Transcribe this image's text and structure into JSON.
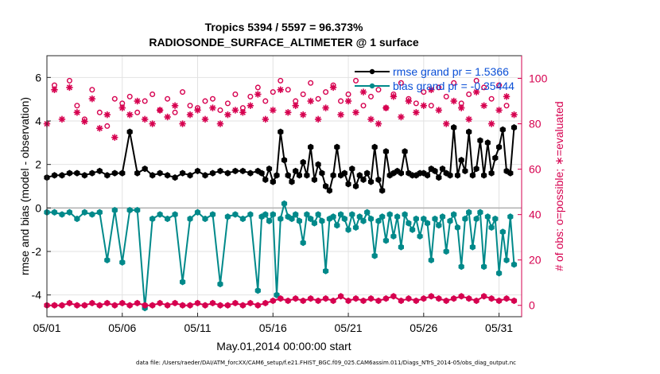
{
  "chart_data": {
    "type": "line",
    "title": "Tropics 5394 / 5597 = 96.373%",
    "subtitle": "RADIOSONDE_SURFACE_ALTIMETER @ 1 surface",
    "xlabel": "May.01,2014 00:00:00 start",
    "ylabel": "rmse and bias (model - observation)",
    "ylabel_right": "# of obs: o=possible; ∗=evaluated",
    "footnote": "data file: /Users/raeder/DAI/ATM_forcXX/CAM6_setup/f.e21.FHIST_BGC.f09_025.CAM6assim.011/Diags_NTrS_2014-05/obs_diag_output.nc",
    "x_range": [
      0,
      31.5
    ],
    "xlim": [
      0,
      31.5
    ],
    "ylim": [
      -5,
      7
    ],
    "ylim_right": [
      -5,
      110
    ],
    "x_tick_positions": [
      0,
      5,
      10,
      15,
      20,
      25,
      30
    ],
    "x_tick_labels": [
      "05/01",
      "05/06",
      "05/11",
      "05/16",
      "05/21",
      "05/26",
      "05/31"
    ],
    "y_ticks": [
      "-4",
      "-2",
      "0",
      "2",
      "4",
      "6"
    ],
    "y_ticks_right": [
      "0",
      "20",
      "40",
      "60",
      "80",
      "100"
    ],
    "zero_line": 0,
    "legend": [
      {
        "name": "rmse grand pr = 1.5366",
        "color": "#000000"
      },
      {
        "name": "bias grand pr = -0.35444",
        "color": "#00898a"
      }
    ],
    "series": [
      {
        "name": "rmse",
        "axis": "left",
        "color": "#000000",
        "style": "line-marker",
        "x": [
          0.0,
          0.5,
          1.0,
          1.5,
          2.0,
          2.5,
          3.0,
          3.5,
          4.0,
          4.5,
          5.0,
          5.5,
          6.0,
          6.5,
          7.0,
          7.5,
          8.0,
          8.5,
          9.0,
          9.5,
          10.0,
          10.5,
          11.0,
          11.5,
          12.0,
          12.5,
          13.0,
          13.5,
          14.0,
          14.25,
          14.5,
          14.75,
          15.0,
          15.25,
          15.5,
          15.75,
          16.0,
          16.25,
          16.5,
          16.75,
          17.0,
          17.25,
          17.5,
          17.75,
          18.0,
          18.25,
          18.5,
          18.75,
          19.0,
          19.25,
          19.5,
          19.75,
          20.0,
          20.25,
          20.5,
          20.75,
          21.0,
          21.25,
          21.5,
          21.75,
          22.0,
          22.25,
          22.5,
          22.75,
          23.0,
          23.25,
          23.5,
          23.75,
          24.0,
          24.25,
          24.5,
          24.75,
          25.0,
          25.25,
          25.5,
          25.75,
          26.0,
          26.25,
          26.5,
          26.75,
          27.0,
          27.25,
          27.5,
          27.75,
          28.0,
          28.25,
          28.5,
          28.75,
          29.0,
          29.25,
          29.5,
          29.75,
          30.0,
          30.25,
          30.5,
          30.75,
          31.0
        ],
        "values": [
          1.4,
          1.5,
          1.5,
          1.6,
          1.6,
          1.5,
          1.6,
          1.7,
          1.5,
          1.6,
          1.6,
          3.5,
          1.6,
          1.8,
          1.5,
          1.6,
          1.5,
          1.4,
          1.6,
          1.5,
          1.7,
          1.5,
          1.6,
          1.7,
          1.6,
          1.7,
          1.7,
          1.6,
          1.7,
          1.6,
          1.3,
          1.8,
          1.2,
          1.5,
          3.5,
          2.2,
          1.5,
          1.2,
          1.7,
          1.5,
          2.1,
          1.5,
          2.8,
          1.3,
          2.0,
          1.6,
          1.0,
          0.8,
          1.5,
          2.8,
          1.5,
          1.6,
          1.1,
          1.8,
          1.0,
          1.5,
          1.3,
          1.6,
          1.2,
          2.8,
          1.3,
          0.8,
          2.6,
          1.5,
          1.6,
          1.7,
          1.6,
          2.6,
          1.6,
          1.5,
          1.5,
          1.6,
          1.6,
          1.5,
          1.8,
          1.7,
          1.4,
          1.8,
          1.6,
          1.5,
          3.7,
          1.5,
          2.2,
          1.7,
          3.5,
          1.5,
          1.8,
          3.1,
          1.5,
          3.0,
          1.6,
          2.3,
          2.8,
          3.6,
          1.7,
          1.6,
          3.7
        ]
      },
      {
        "name": "bias",
        "axis": "left",
        "color": "#00898a",
        "style": "line-marker",
        "x": [
          0.0,
          0.5,
          1.0,
          1.5,
          2.0,
          2.5,
          3.0,
          3.5,
          4.0,
          4.5,
          5.0,
          5.5,
          6.0,
          6.5,
          7.0,
          7.5,
          8.0,
          8.5,
          9.0,
          9.5,
          10.0,
          10.5,
          11.0,
          11.5,
          12.0,
          12.5,
          13.0,
          13.5,
          14.0,
          14.25,
          14.5,
          14.75,
          15.0,
          15.25,
          15.5,
          15.75,
          16.0,
          16.25,
          16.5,
          16.75,
          17.0,
          17.25,
          17.5,
          17.75,
          18.0,
          18.25,
          18.5,
          18.75,
          19.0,
          19.25,
          19.5,
          19.75,
          20.0,
          20.25,
          20.5,
          20.75,
          21.0,
          21.25,
          21.5,
          21.75,
          22.0,
          22.25,
          22.5,
          22.75,
          23.0,
          23.25,
          23.5,
          23.75,
          24.0,
          24.25,
          24.5,
          24.75,
          25.0,
          25.25,
          25.5,
          25.75,
          26.0,
          26.25,
          26.5,
          26.75,
          27.0,
          27.25,
          27.5,
          27.75,
          28.0,
          28.25,
          28.5,
          28.75,
          29.0,
          29.25,
          29.5,
          29.75,
          30.0,
          30.25,
          30.5,
          30.75,
          31.0
        ],
        "values": [
          -0.2,
          -0.2,
          -0.3,
          -0.2,
          -0.5,
          -0.2,
          -0.3,
          -0.2,
          -2.4,
          -0.1,
          -2.5,
          -0.1,
          -0.1,
          -4.6,
          -0.5,
          -0.3,
          -0.5,
          -0.3,
          -3.4,
          -0.5,
          -0.2,
          -0.5,
          -0.3,
          -3.5,
          -0.4,
          -0.3,
          -0.5,
          -0.3,
          -3.8,
          -0.4,
          -0.3,
          -0.6,
          -0.3,
          -4.0,
          -0.5,
          0.2,
          -0.4,
          -0.5,
          -0.3,
          -0.6,
          -1.6,
          -0.3,
          -0.5,
          -0.7,
          -0.3,
          -0.6,
          -2.9,
          -0.5,
          -0.4,
          -0.8,
          -0.3,
          -0.5,
          -1.0,
          -0.3,
          -0.9,
          -0.4,
          -0.6,
          -0.2,
          -0.5,
          -2.2,
          -0.6,
          -0.4,
          -1.5,
          -0.3,
          -1.3,
          -0.4,
          -1.8,
          -0.3,
          -0.7,
          -1.0,
          -0.5,
          -1.3,
          -0.5,
          -0.7,
          -2.4,
          -0.5,
          -0.8,
          -0.4,
          -2.0,
          -0.6,
          -0.3,
          -0.9,
          -2.7,
          -0.5,
          -0.2,
          -1.8,
          -0.5,
          -0.2,
          -2.7,
          -0.4,
          -0.9,
          -0.5,
          -3.0,
          -1.1,
          -2.4,
          -0.4,
          -2.6
        ]
      },
      {
        "name": "possible",
        "axis": "right",
        "color": "#d6004f",
        "style": "marker-circle",
        "x": [
          0.5,
          1.5,
          2.0,
          2.5,
          3.0,
          3.5,
          4.0,
          4.5,
          5.0,
          5.5,
          6.0,
          6.5,
          7.0,
          7.5,
          8.0,
          8.5,
          9.0,
          9.5,
          10.0,
          10.5,
          11.0,
          11.5,
          12.0,
          12.5,
          13.0,
          13.5,
          14.0,
          14.5,
          15.0,
          15.5,
          16.0,
          16.5,
          17.0,
          17.5,
          18.0,
          18.5,
          19.0,
          19.5,
          20.0,
          20.5,
          21.0,
          21.5,
          22.0,
          22.5,
          23.0,
          23.5,
          24.0,
          24.5,
          25.0,
          25.5,
          26.0,
          26.5,
          27.0,
          27.5,
          28.0,
          28.5,
          29.0,
          29.5,
          30.0,
          30.5
        ],
        "values": [
          97,
          99,
          88,
          82,
          95,
          85,
          79,
          91,
          89,
          92,
          85,
          90,
          93,
          86,
          91,
          85,
          94,
          88,
          87,
          90,
          91,
          86,
          89,
          93,
          87,
          92,
          96,
          90,
          94,
          99,
          95,
          90,
          93,
          98,
          91,
          94,
          97,
          90,
          93,
          99,
          88,
          92,
          95,
          87,
          93,
          98,
          91,
          89,
          94,
          88,
          96,
          92,
          98,
          89,
          93,
          99,
          96,
          91,
          97,
          88
        ]
      },
      {
        "name": "evaluated",
        "axis": "right",
        "color": "#d6004f",
        "style": "marker-asterisk",
        "x": [
          0.0,
          0.5,
          1.0,
          1.5,
          2.0,
          2.5,
          3.0,
          3.5,
          4.0,
          4.5,
          5.0,
          5.5,
          6.0,
          6.5,
          7.0,
          7.5,
          8.0,
          8.5,
          9.0,
          9.5,
          10.0,
          10.5,
          11.0,
          11.5,
          12.0,
          12.5,
          13.0,
          13.5,
          14.0,
          14.5,
          15.0,
          15.5,
          16.0,
          16.5,
          17.0,
          17.5,
          18.0,
          18.5,
          19.0,
          19.5,
          20.0,
          20.5,
          21.0,
          21.5,
          22.0,
          22.5,
          23.0,
          23.5,
          24.0,
          24.5,
          25.0,
          25.5,
          26.0,
          26.5,
          27.0,
          27.5,
          28.0,
          28.5,
          29.0,
          29.5,
          30.0,
          30.5,
          31.0
        ],
        "values": [
          80,
          95,
          82,
          96,
          85,
          81,
          91,
          78,
          84,
          74,
          87,
          84,
          90,
          82,
          80,
          86,
          83,
          88,
          80,
          84,
          86,
          82,
          87,
          80,
          84,
          86,
          85,
          88,
          93,
          82,
          86,
          95,
          85,
          88,
          84,
          90,
          82,
          87,
          96,
          84,
          90,
          85,
          94,
          82,
          80,
          87,
          92,
          83,
          90,
          85,
          88,
          95,
          86,
          80,
          90,
          87,
          82,
          94,
          88,
          80,
          86,
          92,
          84
        ]
      },
      {
        "name": "possible-bottom",
        "axis": "right",
        "color": "#d6004f",
        "style": "line-marker",
        "x": [
          0.0,
          0.5,
          1.0,
          1.5,
          2.0,
          2.5,
          3.0,
          3.5,
          4.0,
          4.5,
          5.0,
          5.5,
          6.0,
          6.5,
          7.0,
          7.5,
          8.0,
          8.5,
          9.0,
          9.5,
          10.0,
          10.5,
          11.0,
          11.5,
          12.0,
          12.5,
          13.0,
          13.5,
          14.0,
          14.5,
          15.0,
          15.5,
          16.0,
          16.5,
          17.0,
          17.5,
          18.0,
          18.5,
          19.0,
          19.5,
          20.0,
          20.5,
          21.0,
          21.5,
          22.0,
          22.5,
          23.0,
          23.5,
          24.0,
          24.5,
          25.0,
          25.5,
          26.0,
          26.5,
          27.0,
          27.5,
          28.0,
          28.5,
          29.0,
          29.5,
          30.0,
          30.5,
          31.0
        ],
        "values": [
          0,
          0,
          0,
          1,
          0,
          0,
          1,
          0,
          1,
          0,
          1,
          0,
          1,
          0,
          0,
          1,
          0,
          1,
          0,
          0,
          1,
          0,
          1,
          0,
          0,
          1,
          0,
          1,
          0,
          1,
          2,
          3,
          2,
          3,
          2,
          3,
          2,
          3,
          2,
          4,
          2,
          3,
          2,
          3,
          2,
          3,
          4,
          2,
          3,
          2,
          3,
          4,
          3,
          2,
          3,
          4,
          3,
          2,
          4,
          3,
          2,
          3,
          2
        ]
      }
    ]
  }
}
